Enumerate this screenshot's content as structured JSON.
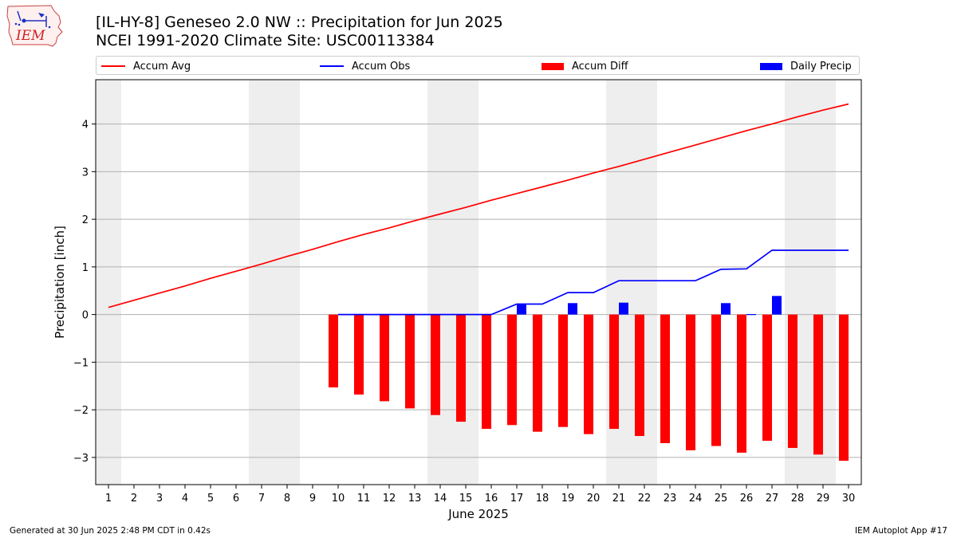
{
  "title_line1": "[IL-HY-8] Geneseo 2.0 NW :: Precipitation for Jun 2025",
  "title_line2": "NCEI 1991-2020 Climate Site: USC00113384",
  "logo_text": "IEM",
  "footer_left": "Generated at 30 Jun 2025 2:48 PM CDT in 0.42s",
  "footer_right": "IEM Autoplot App #17",
  "colors": {
    "avg": "#ff0000",
    "obs": "#0000ff",
    "diff": "#ff0000",
    "daily": "#0000ff",
    "weekend": "#eeeeee",
    "grid": "#b0b0b0"
  },
  "legend": [
    {
      "label": "Accum Avg",
      "kind": "line",
      "color": "#ff0000"
    },
    {
      "label": "Accum Obs",
      "kind": "line",
      "color": "#0000ff"
    },
    {
      "label": "Accum Diff",
      "kind": "box",
      "color": "#ff0000"
    },
    {
      "label": "Daily Precip",
      "kind": "box",
      "color": "#0000ff"
    }
  ],
  "chart_data": {
    "type": "bar",
    "title": "[IL-HY-8] Geneseo 2.0 NW :: Precipitation for Jun 2025",
    "xlabel": "June 2025",
    "ylabel": "Precipitation [inch]",
    "ylim": [
      -3.57,
      4.93
    ],
    "xlim": [
      0.5,
      30.5
    ],
    "yticks": [
      -3,
      -2,
      -1,
      0,
      1,
      2,
      3,
      4
    ],
    "ytick_labels": [
      "−3",
      "−2",
      "−1",
      "0",
      "1",
      "2",
      "3",
      "4"
    ],
    "days": [
      1,
      2,
      3,
      4,
      5,
      6,
      7,
      8,
      9,
      10,
      11,
      12,
      13,
      14,
      15,
      16,
      17,
      18,
      19,
      20,
      21,
      22,
      23,
      24,
      25,
      26,
      27,
      28,
      29,
      30
    ],
    "grid": "horizontal",
    "legend_position": "top",
    "weekend_days": [
      1,
      7,
      8,
      14,
      15,
      21,
      22,
      28,
      29
    ],
    "series": [
      {
        "name": "Accum Avg",
        "kind": "line",
        "color": "#ff0000",
        "values": [
          0.15,
          0.3,
          0.45,
          0.6,
          0.76,
          0.91,
          1.06,
          1.22,
          1.37,
          1.53,
          1.68,
          1.82,
          1.97,
          2.11,
          2.25,
          2.4,
          2.54,
          2.68,
          2.82,
          2.97,
          3.11,
          3.26,
          3.41,
          3.56,
          3.71,
          3.86,
          4.0,
          4.15,
          4.29,
          4.42
        ]
      },
      {
        "name": "Accum Obs",
        "kind": "line",
        "color": "#0000ff",
        "values": [
          null,
          null,
          null,
          null,
          null,
          null,
          null,
          null,
          null,
          0.0,
          0.0,
          0.0,
          0.0,
          0.0,
          0.0,
          0.0,
          0.22,
          0.22,
          0.46,
          0.46,
          0.71,
          0.71,
          0.71,
          0.71,
          0.95,
          0.96,
          1.35,
          1.35,
          1.35,
          1.35
        ]
      },
      {
        "name": "Accum Diff",
        "kind": "bar",
        "color": "#ff0000",
        "values": [
          null,
          null,
          null,
          null,
          null,
          null,
          null,
          null,
          null,
          -1.53,
          -1.68,
          -1.82,
          -1.97,
          -2.11,
          -2.25,
          -2.4,
          -2.32,
          -2.46,
          -2.36,
          -2.51,
          -2.4,
          -2.55,
          -2.7,
          -2.85,
          -2.76,
          -2.9,
          -2.65,
          -2.8,
          -2.94,
          -3.07
        ]
      },
      {
        "name": "Daily Precip",
        "kind": "bar",
        "color": "#0000ff",
        "values": [
          null,
          null,
          null,
          null,
          null,
          null,
          null,
          null,
          null,
          0,
          0,
          0,
          0,
          0,
          0,
          0,
          0.22,
          0,
          0.24,
          0,
          0.25,
          0,
          0,
          0,
          0.24,
          0.01,
          0.39,
          0,
          0,
          0
        ]
      }
    ]
  }
}
